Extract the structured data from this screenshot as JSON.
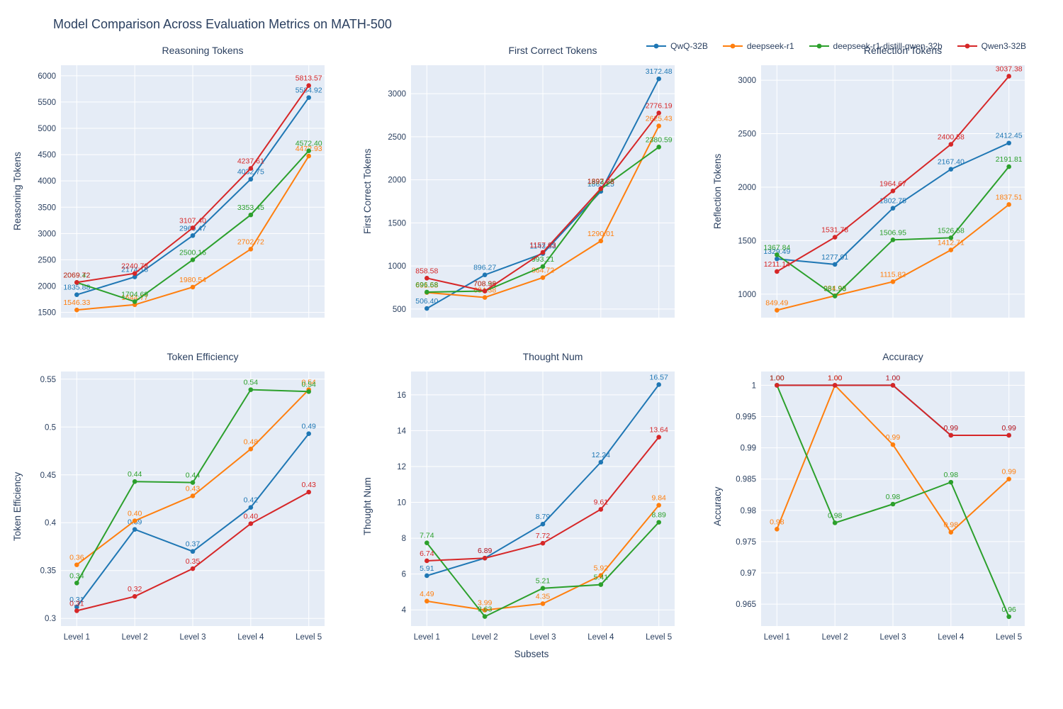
{
  "title": "Model Comparison Across Evaluation Metrics on MATH-500",
  "xlabel": "Subsets",
  "categories": [
    "Level 1",
    "Level 2",
    "Level 3",
    "Level 4",
    "Level 5"
  ],
  "colors": {
    "plot_bg": "#E5ECF6",
    "grid": "#FFFFFF",
    "title_text": "#2a3f5f",
    "tick_text": "#2a3f5f"
  },
  "series_meta": [
    {
      "name": "QwQ-32B",
      "color": "#1f77b4"
    },
    {
      "name": "deepseek-r1",
      "color": "#ff7f0e"
    },
    {
      "name": "deepseek-r1-distill-qwen-32b",
      "color": "#2ca02c"
    },
    {
      "name": "Qwen3-32B",
      "color": "#d62728"
    }
  ],
  "chart_data": [
    {
      "type": "line",
      "title": "Reasoning Tokens",
      "ylabel": "Reasoning Tokens",
      "show_xticks": false,
      "yticks": [
        1500,
        2000,
        2500,
        3000,
        3500,
        4000,
        4500,
        5000,
        5500,
        6000
      ],
      "ytick_labels": [
        "1500",
        "2000",
        "2500",
        "3000",
        "3500",
        "4000",
        "4500",
        "5000",
        "5500",
        "6000"
      ],
      "ylim": [
        1400,
        6200
      ],
      "series": [
        {
          "name": "QwQ-32B",
          "values": [
            1835.88,
            2174.18,
            2960.47,
            4032.75,
            5584.92
          ],
          "labels": [
            "1835.88",
            "2174.18",
            "2960.47",
            "4032.75",
            "5584.92"
          ]
        },
        {
          "name": "deepseek-r1",
          "values": [
            1546.33,
            1644.77,
            1980.54,
            2702.72,
            4472.93
          ],
          "labels": [
            "1546.33",
            "1644.77",
            "1980.54",
            "2702.72",
            "4472.93"
          ]
        },
        {
          "name": "deepseek-r1-distill-qwen-32b",
          "values": [
            2069.42,
            1704.69,
            2500.16,
            3353.45,
            4572.4
          ],
          "labels": [
            "2069.42",
            "1704.69",
            "2500.16",
            "3353.45",
            "4572.40"
          ]
        },
        {
          "name": "Qwen3-32B",
          "values": [
            2069.72,
            2240.73,
            3107.4,
            4237.61,
            5813.57
          ],
          "labels": [
            "2069.72",
            "2240.73",
            "3107.40",
            "4237.61",
            "5813.57"
          ]
        }
      ]
    },
    {
      "type": "line",
      "title": "First Correct Tokens",
      "ylabel": "First Correct Tokens",
      "show_xticks": false,
      "yticks": [
        500,
        1000,
        1500,
        2000,
        2500,
        3000
      ],
      "ytick_labels": [
        "500",
        "1000",
        "1500",
        "2000",
        "2500",
        "3000"
      ],
      "ylim": [
        400,
        3330
      ],
      "series": [
        {
          "name": "QwQ-32B",
          "values": [
            506.4,
            896.27,
            1143.83,
            1865.25,
            3172.48
          ],
          "labels": [
            "506.40",
            "896.27",
            "1143.83",
            "1865.25",
            "3172.48"
          ]
        },
        {
          "name": "deepseek-r1",
          "values": [
            691.58,
            634.38,
            864.72,
            1290.01,
            2625.43
          ],
          "labels": [
            "691.58",
            "634.38",
            "864.72",
            "1290.01",
            "2625.43"
          ]
        },
        {
          "name": "deepseek-r1-distill-qwen-32b",
          "values": [
            696.68,
            708.96,
            993.21,
            1893.23,
            2380.59
          ],
          "labels": [
            "696.68",
            "708.96",
            "993.21",
            "1893.23",
            "2380.59"
          ]
        },
        {
          "name": "Qwen3-32B",
          "values": [
            858.58,
            708.38,
            1157.63,
            1897.28,
            2776.19
          ],
          "labels": [
            "858.58",
            "708.38",
            "1157.63",
            "1897.28",
            "2776.19"
          ]
        }
      ]
    },
    {
      "type": "line",
      "title": "Reflection Tokens",
      "ylabel": "Reflection Tokens",
      "show_xticks": false,
      "yticks": [
        1000,
        1500,
        2000,
        2500,
        3000
      ],
      "ytick_labels": [
        "1000",
        "1500",
        "2000",
        "2500",
        "3000"
      ],
      "ylim": [
        780,
        3140
      ],
      "series": [
        {
          "name": "QwQ-32B",
          "values": [
            1329.49,
            1277.91,
            1802.75,
            2167.4,
            2412.45
          ],
          "labels": [
            "1329.49",
            "1277.91",
            "1802.75",
            "2167.40",
            "2412.45"
          ]
        },
        {
          "name": "deepseek-r1",
          "values": [
            849.49,
            984.96,
            1115.82,
            1412.71,
            1837.51
          ],
          "labels": [
            "849.49",
            "984.96",
            "1115.82",
            "1412.71",
            "1837.51"
          ]
        },
        {
          "name": "deepseek-r1-distill-qwen-32b",
          "values": [
            1367.84,
            981.93,
            1506.95,
            1526.58,
            2191.81
          ],
          "labels": [
            "1367.84",
            "981.93",
            "1506.95",
            "1526.58",
            "2191.81"
          ]
        },
        {
          "name": "Qwen3-32B",
          "values": [
            1211.14,
            1531.78,
            1964.67,
            2400.58,
            3037.38
          ],
          "labels": [
            "1211.14",
            "1531.78",
            "1964.67",
            "2400.58",
            "3037.38"
          ]
        }
      ]
    },
    {
      "type": "line",
      "title": "Token Efficiency",
      "ylabel": "Token Efficiency",
      "show_xticks": true,
      "yticks": [
        0.3,
        0.35,
        0.4,
        0.45,
        0.5,
        0.55
      ],
      "ytick_labels": [
        "0.3",
        "0.35",
        "0.4",
        "0.45",
        "0.5",
        "0.55"
      ],
      "ylim": [
        0.292,
        0.558
      ],
      "series": [
        {
          "name": "QwQ-32B",
          "values": [
            0.312,
            0.393,
            0.37,
            0.416,
            0.493
          ],
          "labels": [
            "0.31",
            "0.39",
            "0.37",
            "0.42",
            "0.49"
          ]
        },
        {
          "name": "deepseek-r1",
          "values": [
            0.356,
            0.402,
            0.428,
            0.477,
            0.539
          ],
          "labels": [
            "0.36",
            "0.40",
            "0.43",
            "0.48",
            "0.54"
          ]
        },
        {
          "name": "deepseek-r1-distill-qwen-32b",
          "values": [
            0.337,
            0.443,
            0.442,
            0.539,
            0.537
          ],
          "labels": [
            "0.34",
            "0.44",
            "0.44",
            "0.54",
            "0.54"
          ]
        },
        {
          "name": "Qwen3-32B",
          "values": [
            0.308,
            0.323,
            0.352,
            0.399,
            0.432
          ],
          "labels": [
            "0.31",
            "0.32",
            "0.35",
            "0.40",
            "0.43"
          ]
        }
      ]
    },
    {
      "type": "line",
      "title": "Thought Num",
      "ylabel": "Thought Num",
      "show_xticks": true,
      "yticks": [
        4,
        6,
        8,
        10,
        12,
        14,
        16
      ],
      "ytick_labels": [
        "4",
        "6",
        "8",
        "10",
        "12",
        "14",
        "16"
      ],
      "ylim": [
        3.1,
        17.3
      ],
      "series": [
        {
          "name": "QwQ-32B",
          "values": [
            5.91,
            6.89,
            8.79,
            12.24,
            16.57
          ],
          "labels": [
            "5.91",
            "6.89",
            "8.79",
            "12.24",
            "16.57"
          ]
        },
        {
          "name": "deepseek-r1",
          "values": [
            4.49,
            3.99,
            4.35,
            5.92,
            9.84
          ],
          "labels": [
            "4.49",
            "3.99",
            "4.35",
            "5.92",
            "9.84"
          ]
        },
        {
          "name": "deepseek-r1-distill-qwen-32b",
          "values": [
            7.74,
            3.63,
            5.21,
            5.41,
            8.89
          ],
          "labels": [
            "7.74",
            "3.63",
            "5.21",
            "5.41",
            "8.89"
          ]
        },
        {
          "name": "Qwen3-32B",
          "values": [
            6.74,
            6.89,
            7.72,
            9.61,
            13.64
          ],
          "labels": [
            "6.74",
            "6.89",
            "7.72",
            "9.61",
            "13.64"
          ]
        }
      ]
    },
    {
      "type": "line",
      "title": "Accuracy",
      "ylabel": "Accuracy",
      "show_xticks": true,
      "yticks": [
        0.965,
        0.97,
        0.975,
        0.98,
        0.985,
        0.99,
        0.995,
        1
      ],
      "ytick_labels": [
        "0.965",
        "0.97",
        "0.975",
        "0.98",
        "0.985",
        "0.99",
        "0.995",
        "1"
      ],
      "ylim": [
        0.9615,
        1.0022
      ],
      "series": [
        {
          "name": "QwQ-32B",
          "values": [
            1.0,
            1.0,
            1.0,
            0.992,
            0.992
          ],
          "labels": [
            "1.00",
            "1.00",
            "1.00",
            "0.99",
            "0.99"
          ]
        },
        {
          "name": "deepseek-r1",
          "values": [
            0.977,
            1.0,
            0.9905,
            0.9765,
            0.985
          ],
          "labels": [
            "0.98",
            "1.00",
            "0.99",
            "0.98",
            "0.99"
          ]
        },
        {
          "name": "deepseek-r1-distill-qwen-32b",
          "values": [
            1.0,
            0.978,
            0.981,
            0.9845,
            0.963
          ],
          "labels": [
            "1.00",
            "0.98",
            "0.98",
            "0.98",
            "0.96"
          ]
        },
        {
          "name": "Qwen3-32B",
          "values": [
            1.0,
            1.0,
            1.0,
            0.992,
            0.992
          ],
          "labels": [
            "1.00",
            "1.00",
            "1.00",
            "0.99",
            "0.99"
          ]
        }
      ]
    }
  ]
}
